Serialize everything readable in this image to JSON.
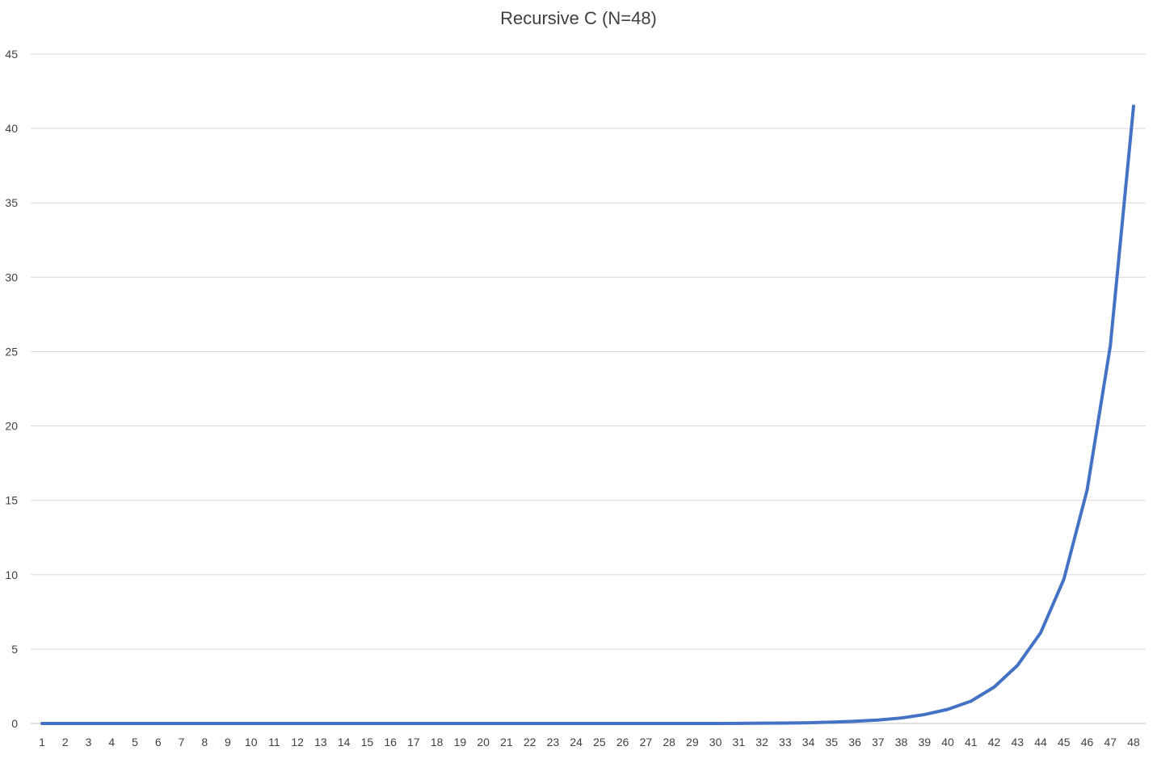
{
  "chart_data": {
    "type": "line",
    "title": "Recursive C (N=48)",
    "xlabel": "",
    "ylabel": "",
    "categories": [
      "1",
      "2",
      "3",
      "4",
      "5",
      "6",
      "7",
      "8",
      "9",
      "10",
      "11",
      "12",
      "13",
      "14",
      "15",
      "16",
      "17",
      "18",
      "19",
      "20",
      "21",
      "22",
      "23",
      "24",
      "25",
      "26",
      "27",
      "28",
      "29",
      "30",
      "31",
      "32",
      "33",
      "34",
      "35",
      "36",
      "37",
      "38",
      "39",
      "40",
      "41",
      "42",
      "43",
      "44",
      "45",
      "46",
      "47",
      "48"
    ],
    "ylim": [
      0,
      45
    ],
    "yticks": [
      0,
      5,
      10,
      15,
      20,
      25,
      30,
      35,
      40,
      45
    ],
    "grid": true,
    "legend": "none",
    "series": [
      {
        "color": "#4472c4",
        "values": [
          0,
          0,
          0,
          0,
          0,
          0,
          0,
          0,
          0,
          0,
          0,
          0,
          0,
          0,
          0,
          0,
          0,
          0,
          0,
          0,
          0,
          0,
          0,
          0,
          0,
          0,
          0,
          0,
          0,
          0,
          0.01,
          0.02,
          0.03,
          0.05,
          0.09,
          0.15,
          0.23,
          0.37,
          0.6,
          0.95,
          1.5,
          2.45,
          3.9,
          6.1,
          9.7,
          15.7,
          25.4,
          41.5
        ]
      }
    ]
  }
}
